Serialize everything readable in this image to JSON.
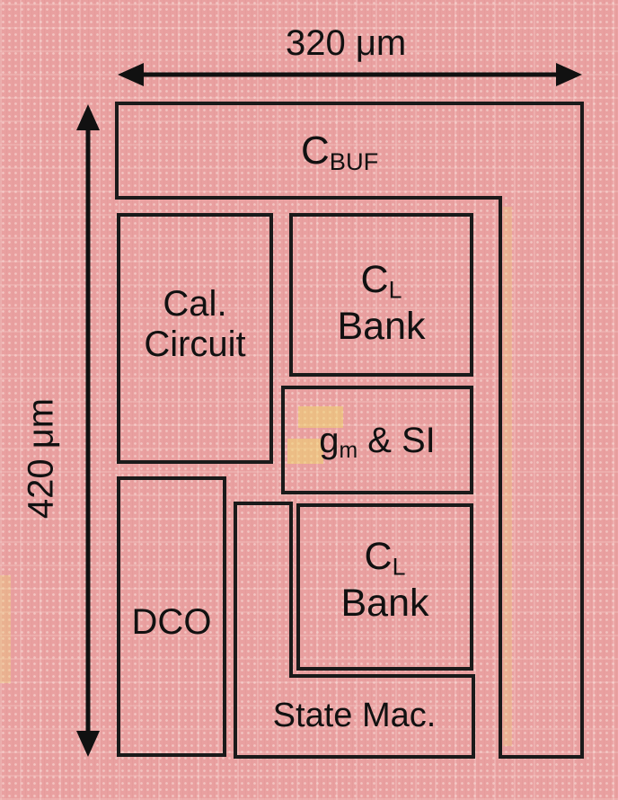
{
  "width_label": "320 μm",
  "height_label": "420 μm",
  "blocks": {
    "cbuf": {
      "main": "C",
      "sub": "BUF"
    },
    "cal": {
      "line1": "Cal.",
      "line2": "Circuit"
    },
    "cl_bank_top": {
      "main": "C",
      "sub": "L",
      "line2": "Bank"
    },
    "gm_si": {
      "main": "g",
      "sub": "m",
      "rest": " & SI"
    },
    "dco": {
      "text": "DCO"
    },
    "cl_bank_bottom": {
      "main": "C",
      "sub": "L",
      "line2": "Bank"
    },
    "state_mac": {
      "text": "State Mac."
    }
  },
  "colors": {
    "die_background": "#e9a0a0",
    "outline": "#1a1a1a",
    "metal_highlight": "#eed670"
  }
}
